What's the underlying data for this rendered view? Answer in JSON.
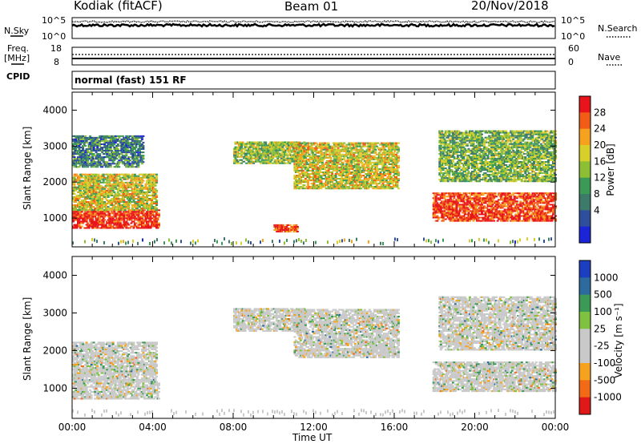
{
  "header": {
    "station": "Kodiak (fitACF)",
    "beam": "Beam 01",
    "date": "20/Nov/2018"
  },
  "top_panels": {
    "nsky_label": "N.Sky",
    "nsky_ticks": [
      "10^5",
      "10^0"
    ],
    "nsearch_label": "N.Search",
    "nsearch_ticks": [
      "10^5",
      "10^0"
    ],
    "freq_label": "Freq.",
    "freq_unit": "[MHz]",
    "freq_ticks": [
      "18",
      "8"
    ],
    "nave_label": "Nave",
    "nave_ticks": [
      "60",
      "0"
    ],
    "cpid_label": "CPID",
    "cpid_value": "normal (fast) 151 RF"
  },
  "chart_data": [
    {
      "type": "heatmap",
      "name": "power-panel",
      "ylabel": "Slant Range [km]",
      "xlabel": "",
      "y_ticks": [
        "4000",
        "3000",
        "2000",
        "1000"
      ],
      "ylim": [
        200,
        4500
      ],
      "xlim": [
        0,
        24
      ],
      "colorbar": {
        "label": "Power [dB]",
        "ticks": [
          "28",
          "24",
          "20",
          "16",
          "12",
          "8",
          "4"
        ],
        "colors": [
          "#e8141b",
          "#f25c16",
          "#f7a21e",
          "#d8cf2a",
          "#8dbf35",
          "#3c9a57",
          "#3d7a6a",
          "#2f4f9c",
          "#1b24d6"
        ]
      },
      "regions": [
        {
          "t0": 0.0,
          "t1": 4.3,
          "r0": 700,
          "r1": 1200,
          "level": 0.95
        },
        {
          "t0": 0.0,
          "t1": 4.2,
          "r0": 1200,
          "r1": 2200,
          "level": 0.6
        },
        {
          "t0": 0.0,
          "t1": 3.5,
          "r0": 2400,
          "r1": 3300,
          "level": 0.3
        },
        {
          "t0": 8.0,
          "t1": 11.5,
          "r0": 2500,
          "r1": 3100,
          "level": 0.5
        },
        {
          "t0": 11.0,
          "t1": 16.2,
          "r0": 1800,
          "r1": 3100,
          "level": 0.6
        },
        {
          "t0": 17.9,
          "t1": 24.0,
          "r0": 900,
          "r1": 1700,
          "level": 0.9
        },
        {
          "t0": 18.2,
          "t1": 24.0,
          "r0": 2000,
          "r1": 3400,
          "level": 0.45
        },
        {
          "t0": 10.0,
          "t1": 11.2,
          "r0": 600,
          "r1": 800,
          "level": 0.9
        }
      ]
    },
    {
      "type": "heatmap",
      "name": "velocity-panel",
      "ylabel": "Slant Range [km]",
      "xlabel": "Time UT",
      "x_ticks": [
        "00:00",
        "04:00",
        "08:00",
        "12:00",
        "16:00",
        "20:00",
        "00:00"
      ],
      "y_ticks": [
        "4000",
        "3000",
        "2000",
        "1000"
      ],
      "ylim": [
        200,
        4500
      ],
      "xlim": [
        0,
        24
      ],
      "colorbar": {
        "label": "Velocity [m s⁻¹]",
        "ticks": [
          "1000",
          "500",
          "100",
          "25",
          "-25",
          "-100",
          "-500",
          "-1000"
        ],
        "colors": [
          "#1b3fbf",
          "#2d6b9e",
          "#3c9a57",
          "#7fc240",
          "#c9c9c9",
          "#c9c9c9",
          "#f7a21e",
          "#f26a16",
          "#e01818"
        ]
      },
      "regions": [
        {
          "t0": 0.0,
          "t1": 4.3,
          "r0": 700,
          "r1": 1200,
          "level": 0.7
        },
        {
          "t0": 0.0,
          "t1": 4.2,
          "r0": 1200,
          "r1": 2200,
          "level": 0.5
        },
        {
          "t0": 8.0,
          "t1": 11.5,
          "r0": 2500,
          "r1": 3100,
          "level": 0.5
        },
        {
          "t0": 11.0,
          "t1": 16.2,
          "r0": 1800,
          "r1": 3100,
          "level": 0.5
        },
        {
          "t0": 17.9,
          "t1": 24.0,
          "r0": 900,
          "r1": 1700,
          "level": 0.5
        },
        {
          "t0": 18.2,
          "t1": 24.0,
          "r0": 2000,
          "r1": 3400,
          "level": 0.5
        }
      ]
    }
  ]
}
